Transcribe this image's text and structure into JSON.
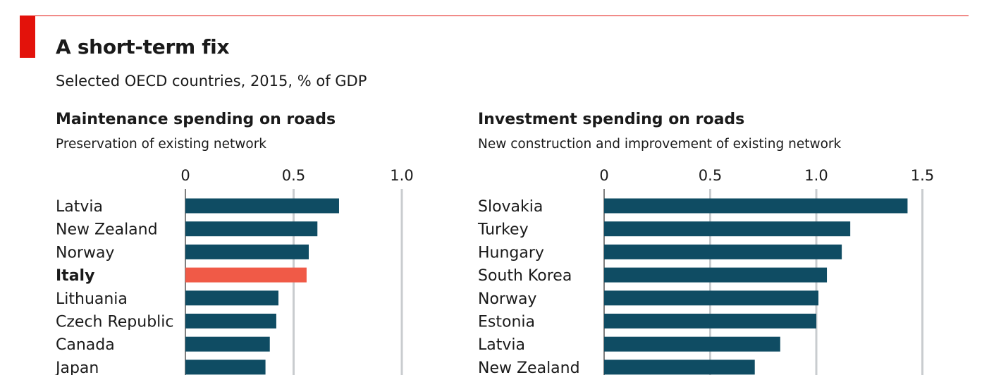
{
  "header": {
    "title": "A short-term fix",
    "subtitle": "Selected OECD countries, 2015, % of GDP"
  },
  "colors": {
    "accent": "#e3120b",
    "bar": "#0f4c63",
    "highlight": "#f05a47",
    "grid": "#c9cccf"
  },
  "chart_data": [
    {
      "type": "bar",
      "orientation": "horizontal",
      "title": "Maintenance spending on roads",
      "subtitle": "Preservation of existing network",
      "xlim": [
        0,
        1.0
      ],
      "ticks": [
        0,
        0.5,
        1.0
      ],
      "tick_labels": [
        "0",
        "0.5",
        "1.0"
      ],
      "grid": true,
      "categories": [
        "Latvia",
        "New Zealand",
        "Norway",
        "Italy",
        "Lithuania",
        "Czech Republic",
        "Canada",
        "Japan"
      ],
      "values": [
        0.71,
        0.61,
        0.57,
        0.56,
        0.43,
        0.42,
        0.39,
        0.37
      ],
      "highlight": "Italy"
    },
    {
      "type": "bar",
      "orientation": "horizontal",
      "title": "Investment spending on roads",
      "subtitle": "New construction and improvement of existing network",
      "xlim": [
        0,
        1.5
      ],
      "ticks": [
        0,
        0.5,
        1.0,
        1.5
      ],
      "tick_labels": [
        "0",
        "0.5",
        "1.0",
        "1.5"
      ],
      "grid": true,
      "categories": [
        "Slovakia",
        "Turkey",
        "Hungary",
        "South Korea",
        "Norway",
        "Estonia",
        "Latvia",
        "New Zealand"
      ],
      "values": [
        1.43,
        1.16,
        1.12,
        1.05,
        1.01,
        1.0,
        0.83,
        0.71
      ]
    }
  ]
}
